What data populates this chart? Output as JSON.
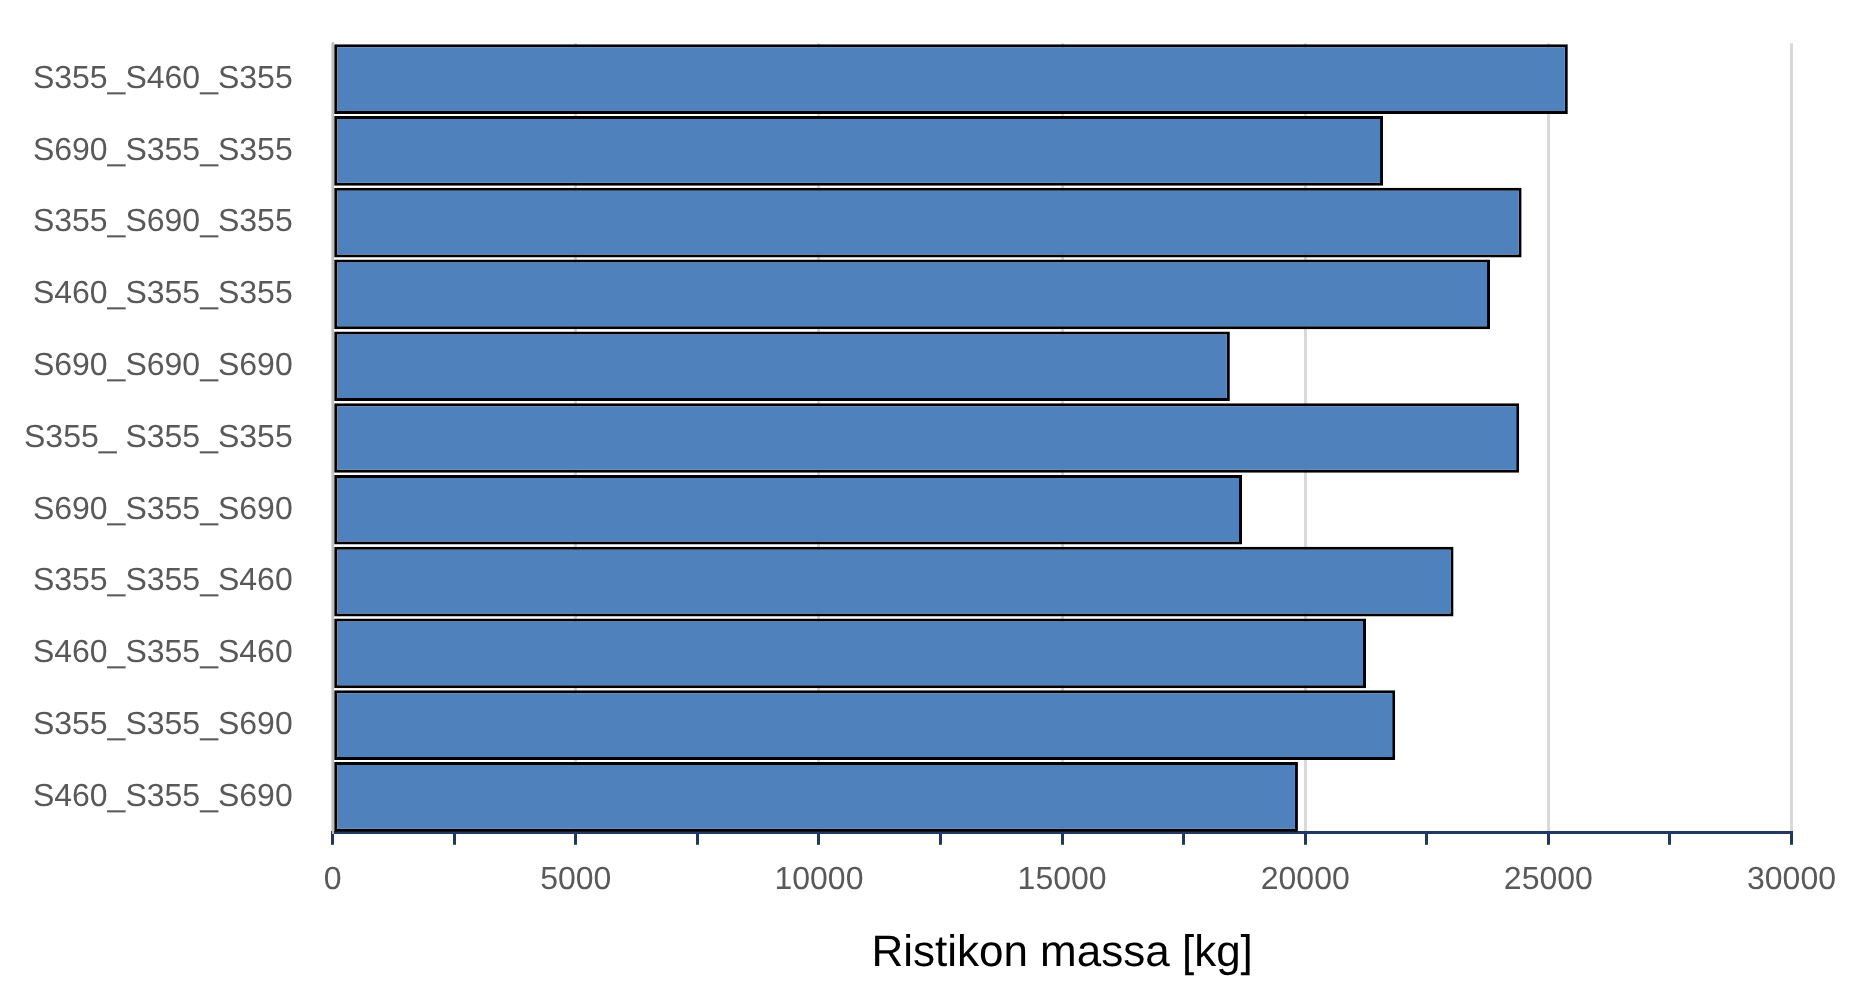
{
  "chart_data": {
    "type": "bar",
    "orientation": "horizontal",
    "xlabel": "Ristikon massa [kg]",
    "categories": [
      "S355_S460_S355",
      "S690_S355_S355",
      "S355_S690_S355",
      "S460_S355_S355",
      "S690_S690_S690",
      "S355_ S355_S355",
      "S690_S355_S690",
      "S355_S355_S460",
      "S460_S355_S460",
      "S355_S355_S690",
      "S460_S355_S690"
    ],
    "values": [
      25400,
      21600,
      24450,
      23800,
      18450,
      24400,
      18700,
      23050,
      21250,
      21850,
      19850
    ],
    "color": "#4f81bd",
    "xlim": [
      0,
      30000
    ],
    "xticks": [
      0,
      {
        "value": 2500,
        "label": null
      },
      5000,
      {
        "value": 7500,
        "label": null
      },
      10000,
      {
        "value": 12500,
        "label": null
      },
      15000,
      {
        "value": 17500,
        "label": null
      },
      20000,
      {
        "value": 22500,
        "label": null
      },
      25000,
      {
        "value": 27500,
        "label": null
      },
      30000
    ],
    "grid": "x",
    "legend": false
  }
}
